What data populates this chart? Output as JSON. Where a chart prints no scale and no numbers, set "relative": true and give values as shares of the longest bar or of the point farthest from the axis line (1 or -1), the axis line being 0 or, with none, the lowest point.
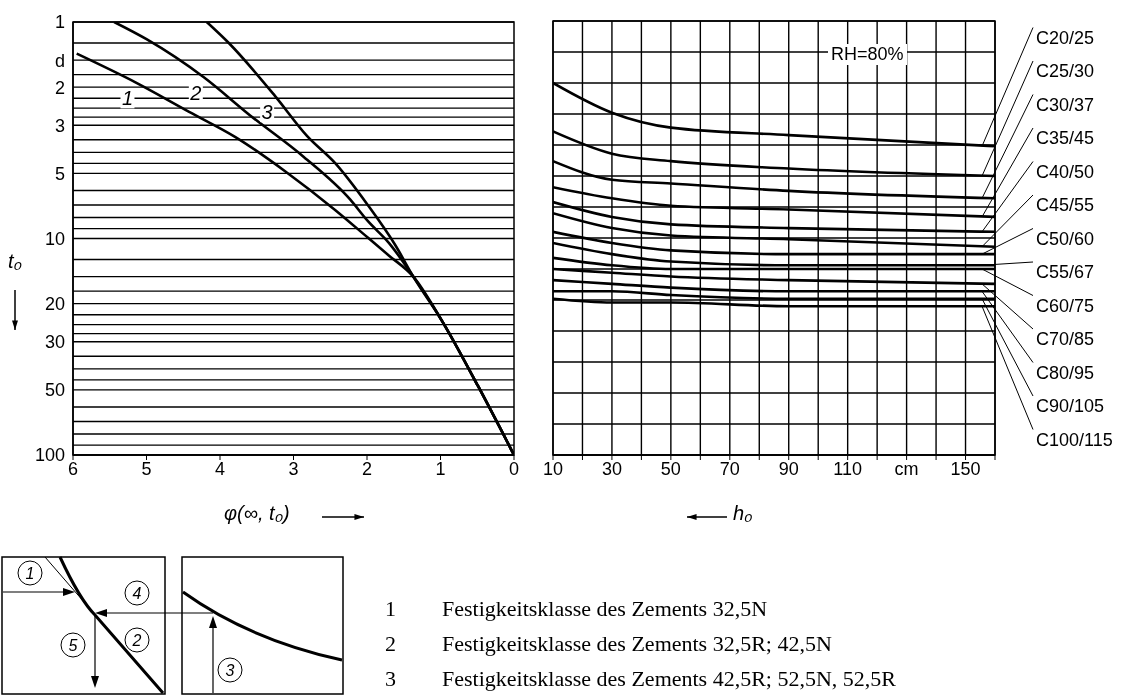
{
  "chart_data": [
    {
      "type": "line",
      "xlabel": "φ(∞, t₀)",
      "ylabel": "t₀",
      "xlim": [
        6,
        0
      ],
      "xticks": [
        6,
        5,
        4,
        3,
        2,
        1,
        0
      ],
      "ylim": [
        100,
        1
      ],
      "yticks": [
        1,
        {
          "value": 1.25,
          "label": null
        },
        {
          "value": 1.5,
          "label": "d"
        },
        {
          "value": 1.75,
          "label": null
        },
        2,
        {
          "value": 2.25,
          "label": null
        },
        {
          "value": 2.5,
          "label": null
        },
        {
          "value": 2.75,
          "label": null
        },
        3,
        {
          "value": 3.5,
          "label": null
        },
        {
          "value": 4,
          "label": null
        },
        {
          "value": 4.5,
          "label": null
        },
        5,
        {
          "value": 6,
          "label": null
        },
        {
          "value": 7,
          "label": null
        },
        {
          "value": 8,
          "label": null
        },
        {
          "value": 9,
          "label": null
        },
        10,
        {
          "value": 12.5,
          "label": null
        },
        {
          "value": 15,
          "label": null
        },
        {
          "value": 17.5,
          "label": null
        },
        20,
        {
          "value": 22.5,
          "label": null
        },
        {
          "value": 25,
          "label": null
        },
        {
          "value": 27.5,
          "label": null
        },
        30,
        {
          "value": 35,
          "label": null
        },
        {
          "value": 40,
          "label": null
        },
        {
          "value": 45,
          "label": null
        },
        50,
        {
          "value": 60,
          "label": null
        },
        {
          "value": 70,
          "label": null
        },
        {
          "value": 80,
          "label": null
        },
        {
          "value": 90,
          "label": null
        },
        100
      ],
      "log": true,
      "grid": "y",
      "marker": "none",
      "series": [
        {
          "name": "1",
          "color": "#000000",
          "x": [
            5.95,
            5.15,
            4.42,
            3.79,
            3.11,
            2.43,
            1.99,
            1.7,
            1.37,
            0.98,
            0.49,
            0
          ],
          "values": [
            1.4,
            1.9,
            2.6,
            3.4,
            4.9,
            7.4,
            9.9,
            12,
            15,
            24,
            48,
            100
          ]
        },
        {
          "name": "2",
          "color": "#000000",
          "x": [
            5.44,
            5.0,
            4.22,
            3.59,
            2.86,
            2.23,
            1.99,
            1.7,
            1.37,
            0.98,
            0.49,
            0
          ],
          "values": [
            1,
            1.2,
            1.8,
            2.7,
            4.2,
            6.6,
            8.3,
            10.5,
            15,
            24,
            48,
            100
          ]
        },
        {
          "name": "3",
          "color": "#000000",
          "x": [
            4.18,
            3.88,
            3.25,
            2.82,
            2.43,
            1.99,
            1.61,
            1.37,
            0.98,
            0.49,
            0
          ],
          "values": [
            1,
            1.25,
            2.2,
            3.35,
            4.5,
            7,
            10.8,
            15,
            24,
            48,
            100
          ]
        }
      ],
      "annotations": [
        "1 Festigkeitsklasse des Zements 32,5N",
        "2 Festigkeitsklasse des Zements 32,5R; 42,5N",
        "3 Festigkeitsklasse des Zements 42,5R; 52,5N, 52,5R",
        "1",
        "2",
        "3",
        "4",
        "5"
      ]
    },
    {
      "type": "line",
      "relative": true,
      "xlabel": "h₀",
      "xlim": [
        10,
        160
      ],
      "xticks": [
        10,
        {
          "value": 20,
          "label": null
        },
        30,
        {
          "value": 40,
          "label": null
        },
        50,
        {
          "value": 60,
          "label": null
        },
        70,
        {
          "value": 80,
          "label": null
        },
        90,
        {
          "value": 100,
          "label": null
        },
        110,
        {
          "value": 120,
          "label": null
        },
        {
          "value": 130,
          "label": "cm"
        },
        {
          "value": 140,
          "label": null
        },
        150,
        {
          "value": 160,
          "label": null
        }
      ],
      "x": [
        10,
        30,
        50,
        90,
        160
      ],
      "grid": true,
      "legend": "right",
      "marker": "none",
      "annotations": [
        "RH=80%"
      ],
      "series": [
        {
          "name": "C20/25",
          "color": "#000000",
          "values": [
            1.0,
            0.92,
            0.88,
            0.86,
            0.83
          ]
        },
        {
          "name": "C25/30",
          "color": "#000000",
          "values": [
            0.87,
            0.81,
            0.79,
            0.77,
            0.75
          ]
        },
        {
          "name": "C30/37",
          "color": "#000000",
          "values": [
            0.79,
            0.74,
            0.73,
            0.71,
            0.69
          ]
        },
        {
          "name": "C35/45",
          "color": "#000000",
          "values": [
            0.72,
            0.69,
            0.67,
            0.66,
            0.64
          ]
        },
        {
          "name": "C40/50",
          "color": "#000000",
          "values": [
            0.68,
            0.64,
            0.62,
            0.61,
            0.6
          ]
        },
        {
          "name": "C45/55",
          "color": "#000000",
          "values": [
            0.65,
            0.61,
            0.59,
            0.58,
            0.56
          ]
        },
        {
          "name": "C50/60",
          "color": "#000000",
          "values": [
            0.6,
            0.57,
            0.55,
            0.54,
            0.54
          ]
        },
        {
          "name": "C55/67",
          "color": "#000000",
          "values": [
            0.57,
            0.54,
            0.52,
            0.51,
            0.51
          ]
        },
        {
          "name": "C60/75",
          "color": "#000000",
          "values": [
            0.53,
            0.51,
            0.5,
            0.5,
            0.5
          ]
        },
        {
          "name": "C70/85",
          "color": "#000000",
          "values": [
            0.5,
            0.49,
            0.48,
            0.47,
            0.46
          ]
        },
        {
          "name": "C80/95",
          "color": "#000000",
          "values": [
            0.47,
            0.46,
            0.45,
            0.44,
            0.44
          ]
        },
        {
          "name": "C90/105",
          "color": "#000000",
          "values": [
            0.44,
            0.44,
            0.43,
            0.42,
            0.42
          ]
        },
        {
          "name": "C100/115",
          "color": "#000000",
          "values": [
            0.42,
            0.41,
            0.41,
            0.4,
            0.4
          ]
        }
      ]
    }
  ]
}
